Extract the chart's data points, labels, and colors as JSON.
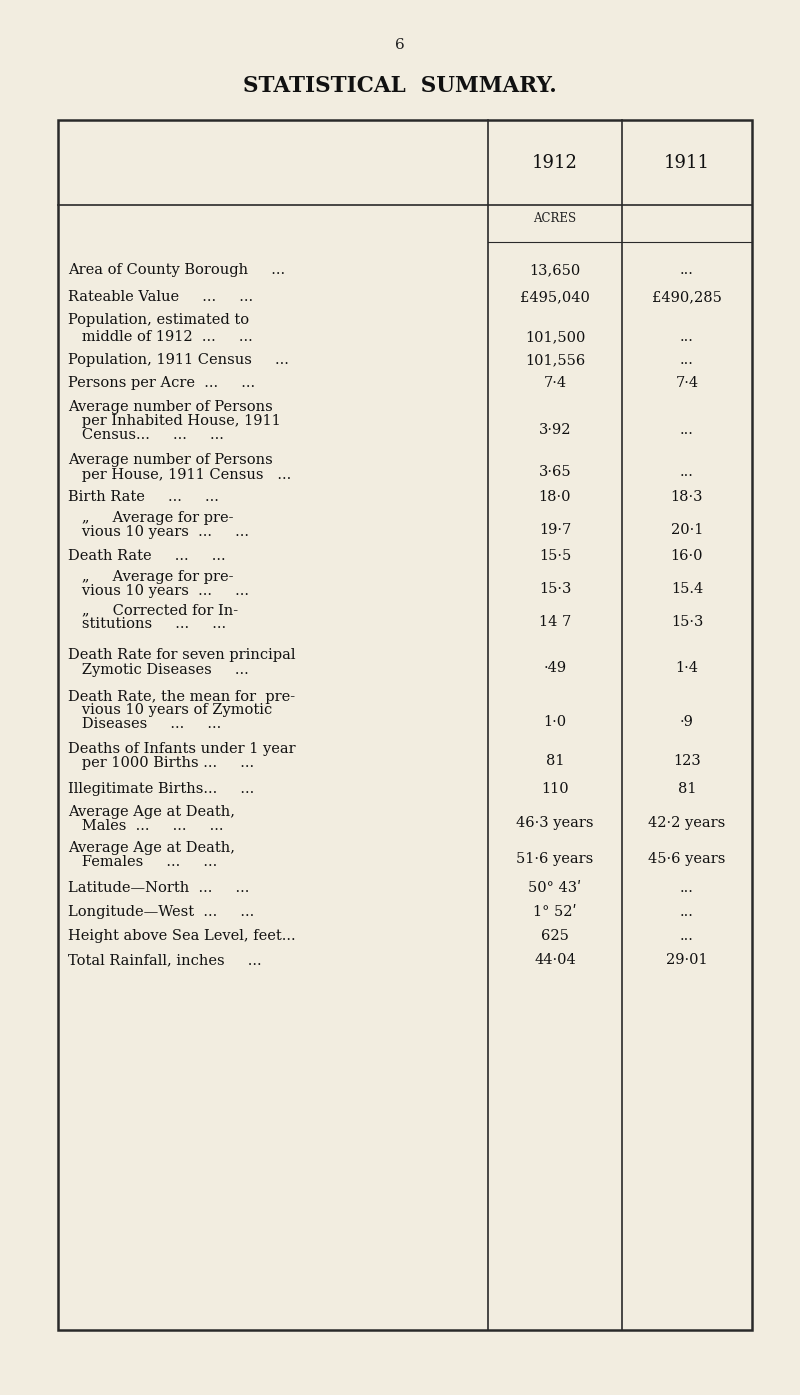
{
  "page_number": "6",
  "title": "STATISTICAL  SUMMARY.",
  "bg_color": "#f2ede0",
  "col_header_1912": "1912",
  "col_header_1911": "1911",
  "rows": [
    {
      "lines": [
        "Area of County Borough     ..."
      ],
      "note": "ACRES",
      "val1912": "13,650",
      "val1911": "..."
    },
    {
      "lines": [
        "Rateable Value     ...     ..."
      ],
      "note": "",
      "val1912": "£495,040",
      "val1911": "£490,285"
    },
    {
      "lines": [
        "Population, estimated to",
        "   middle of 1912  ...     ..."
      ],
      "note": "",
      "val1912": "101,500",
      "val1911": "..."
    },
    {
      "lines": [
        "Population, 1911 Census     ..."
      ],
      "note": "",
      "val1912": "101,556",
      "val1911": "..."
    },
    {
      "lines": [
        "Persons per Acre  ...     ..."
      ],
      "note": "",
      "val1912": "7·4",
      "val1911": "7·4"
    },
    {
      "lines": [
        "Average number of Persons",
        "   per Inhabited House, 1911",
        "   Census...     ...     ..."
      ],
      "note": "",
      "val1912": "3·92",
      "val1911": "..."
    },
    {
      "lines": [
        "Average number of Persons",
        "   per House, 1911 Census   ..."
      ],
      "note": "",
      "val1912": "3·65",
      "val1911": "..."
    },
    {
      "lines": [
        "Birth Rate     ...     ..."
      ],
      "note": "",
      "val1912": "18·0",
      "val1911": "18·3"
    },
    {
      "lines": [
        "   „     Average for pre-",
        "   vious 10 years  ...     ..."
      ],
      "note": "",
      "val1912": "19·7",
      "val1911": "20·1"
    },
    {
      "lines": [
        "Death Rate     ...     ..."
      ],
      "note": "",
      "val1912": "15·5",
      "val1911": "16·0"
    },
    {
      "lines": [
        "   „     Average for pre-",
        "   vious 10 years  ...     ..."
      ],
      "note": "",
      "val1912": "15·3",
      "val1911": "15.4"
    },
    {
      "lines": [
        "   „     Corrected for In-",
        "   stitutions     ...     ..."
      ],
      "note": "",
      "val1912": "14 7",
      "val1911": "15·3"
    },
    {
      "lines": [
        "Death Rate for seven principal",
        "   Zymotic Diseases     ..."
      ],
      "note": "",
      "val1912": "·49",
      "val1911": "1·4"
    },
    {
      "lines": [
        "Death Rate, the mean for  pre-",
        "   vious 10 years of Zymotic",
        "   Diseases     ...     ..."
      ],
      "note": "",
      "val1912": "1·0",
      "val1911": "·9"
    },
    {
      "lines": [
        "Deaths of Infants under 1 year",
        "   per 1000 Births ...     ..."
      ],
      "note": "",
      "val1912": "81",
      "val1911": "123"
    },
    {
      "lines": [
        "Illegitimate Births...     ..."
      ],
      "note": "",
      "val1912": "110",
      "val1911": "81"
    },
    {
      "lines": [
        "Average Age at Death,",
        "   Males  ...     ...     ..."
      ],
      "note": "",
      "val1912": "46·3 years",
      "val1911": "42·2 years"
    },
    {
      "lines": [
        "Average Age at Death,",
        "   Females     ...     ..."
      ],
      "note": "",
      "val1912": "51·6 years",
      "val1911": "45·6 years"
    },
    {
      "lines": [
        "Latitude—North  ...     ..."
      ],
      "note": "",
      "val1912": "50° 43ʹ",
      "val1911": "..."
    },
    {
      "lines": [
        "Longitude—West  ...     ..."
      ],
      "note": "",
      "val1912": "1° 52ʹ",
      "val1911": "..."
    },
    {
      "lines": [
        "Height above Sea Level, feet..."
      ],
      "note": "",
      "val1912": "625",
      "val1911": "..."
    },
    {
      "lines": [
        "Total Rainfall, inches     ..."
      ],
      "note": "",
      "val1912": "44·04",
      "val1911": "29·01"
    }
  ]
}
